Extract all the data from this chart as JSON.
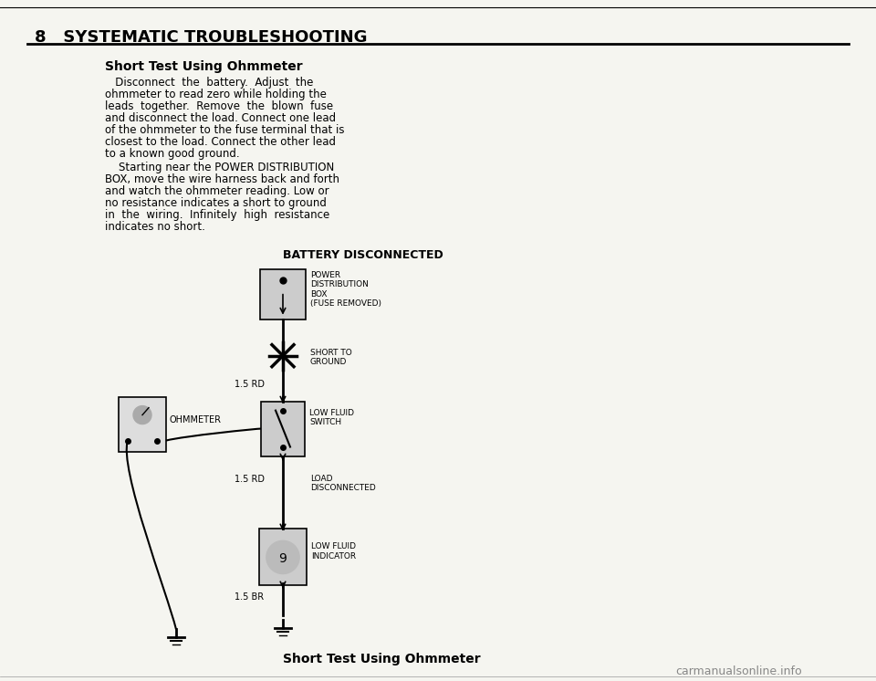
{
  "bg_color": "#f5f5f0",
  "title_chapter": "8   SYSTEMATIC TROUBLESHOOTING",
  "section_title": "Short Test Using Ohmmeter",
  "paragraph1": "Disconnect the battery.  Adjust  the\nohmmeter to read zero while holding the\nleads together.  Remove  the  blown  fuse\nand disconnect the load. Connect one lead\nof the ohmmeter to the fuse terminal that is\nclosest to the load. Connect the other lead\nto a known good ground.",
  "paragraph2": "    Starting near the POWER DISTRIBUTION\nBOX, move the wire harness back and forth\nand watch the ohmmeter reading. Low or\nno resistance indicates a short to ground\nin  the  wiring.  Infinitely  high  resistance\nindicates no short.",
  "diagram_title": "BATTERY DISCONNECTED",
  "footer_text": "Short Test Using Ohmmeter",
  "watermark": "carmanualsonline.info",
  "label_power": "POWER\nDISTRIBUTION\nBOX\n(FUSE REMOVED)",
  "label_short": "SHORT TO\nGROUND",
  "label_wire1": "1.5 RD",
  "label_ohmmeter": "OHMMETER",
  "label_low_fluid_switch": "LOW FLUID\nSWITCH",
  "label_wire2": "1.5 RD",
  "label_load": "LOAD\nDISCONNECTED",
  "label_low_fluid_ind": "LOW FLUID\nINDICATOR",
  "label_wire3": "1.5 BR"
}
